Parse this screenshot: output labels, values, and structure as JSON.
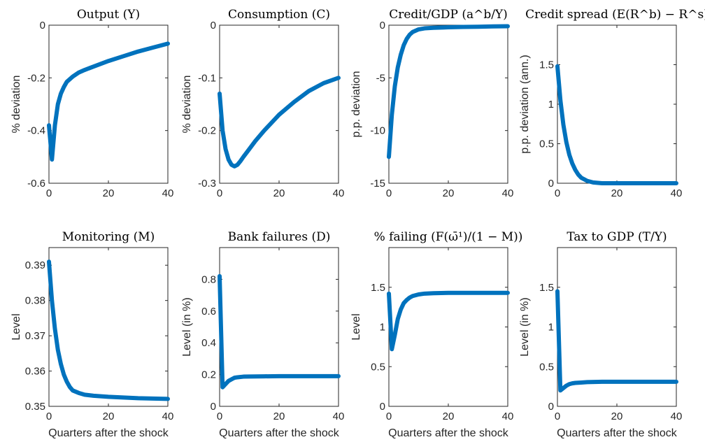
{
  "chart_data": [
    {
      "type": "line",
      "title": "Output (Y)",
      "ylabel": "% deviation",
      "xlabel": "",
      "xlim": [
        0,
        40
      ],
      "ylim": [
        -0.6,
        0
      ],
      "xticks": [
        0,
        20,
        40
      ],
      "yticks": [
        0,
        -0.2,
        -0.4,
        -0.6
      ],
      "ytick_labels": [
        "0",
        "-0.2",
        "-0.4",
        "-0.6"
      ],
      "x": [
        0,
        1,
        2,
        3,
        4,
        5,
        6,
        8,
        10,
        12,
        15,
        20,
        25,
        30,
        35,
        40
      ],
      "y": [
        -0.38,
        -0.51,
        -0.38,
        -0.3,
        -0.26,
        -0.235,
        -0.215,
        -0.195,
        -0.18,
        -0.17,
        -0.157,
        -0.136,
        -0.118,
        -0.1,
        -0.085,
        -0.07
      ],
      "color": "#0072bd"
    },
    {
      "type": "line",
      "title": "Consumption (C)",
      "ylabel": "% deviation",
      "xlabel": "",
      "xlim": [
        0,
        40
      ],
      "ylim": [
        -0.3,
        0
      ],
      "xticks": [
        0,
        20,
        40
      ],
      "yticks": [
        0,
        -0.1,
        -0.2,
        -0.3
      ],
      "ytick_labels": [
        "0",
        "-0.1",
        "-0.2",
        "-0.3"
      ],
      "x": [
        0,
        1,
        2,
        3,
        4,
        5,
        6,
        7,
        8,
        10,
        12,
        15,
        20,
        25,
        30,
        35,
        40
      ],
      "y": [
        -0.13,
        -0.2,
        -0.235,
        -0.255,
        -0.265,
        -0.268,
        -0.265,
        -0.258,
        -0.25,
        -0.235,
        -0.22,
        -0.2,
        -0.17,
        -0.146,
        -0.125,
        -0.11,
        -0.1
      ],
      "color": "#0072bd"
    },
    {
      "type": "line",
      "title": "Credit/GDP (a^b/Y)",
      "ylabel": "p.p. deviation",
      "xlabel": "",
      "xlim": [
        0,
        40
      ],
      "ylim": [
        -15,
        0
      ],
      "xticks": [
        0,
        20,
        40
      ],
      "yticks": [
        0,
        -5,
        -10,
        -15
      ],
      "ytick_labels": [
        "0",
        "-5",
        "-10",
        "-15"
      ],
      "x": [
        0,
        1,
        2,
        3,
        4,
        5,
        6,
        7,
        8,
        10,
        12,
        15,
        20,
        25,
        30,
        35,
        40
      ],
      "y": [
        -12.5,
        -8.5,
        -5.8,
        -4.0,
        -2.8,
        -1.9,
        -1.3,
        -0.9,
        -0.65,
        -0.4,
        -0.3,
        -0.25,
        -0.2,
        -0.17,
        -0.15,
        -0.12,
        -0.1
      ],
      "color": "#0072bd"
    },
    {
      "type": "line",
      "title": "Credit spread (E(R^b) − R^s)",
      "ylabel": "p.p. deviation (ann.)",
      "xlabel": "",
      "xlim": [
        0,
        40
      ],
      "ylim": [
        0,
        2
      ],
      "xticks": [
        0,
        20,
        40
      ],
      "yticks": [
        0,
        0.5,
        1,
        1.5
      ],
      "ytick_labels": [
        "0",
        "0.5",
        "1",
        "1.5"
      ],
      "x": [
        0,
        1,
        2,
        3,
        4,
        5,
        6,
        7,
        8,
        10,
        12,
        15,
        20,
        30,
        40
      ],
      "y": [
        1.48,
        1.05,
        0.74,
        0.52,
        0.36,
        0.25,
        0.17,
        0.11,
        0.07,
        0.03,
        0.01,
        0.0,
        0.0,
        0.0,
        0.0
      ],
      "color": "#0072bd"
    },
    {
      "type": "line",
      "title": "Monitoring (M)",
      "ylabel": "Level",
      "xlabel": "Quarters after the shock",
      "xlim": [
        0,
        40
      ],
      "ylim": [
        0.35,
        0.395
      ],
      "xticks": [
        0,
        20,
        40
      ],
      "yticks": [
        0.35,
        0.36,
        0.37,
        0.38,
        0.39
      ],
      "ytick_labels": [
        "0.35",
        "0.36",
        "0.37",
        "0.38",
        "0.39"
      ],
      "x": [
        0,
        1,
        2,
        3,
        4,
        5,
        6,
        7,
        8,
        10,
        12,
        15,
        20,
        25,
        30,
        40
      ],
      "y": [
        0.391,
        0.38,
        0.372,
        0.366,
        0.362,
        0.359,
        0.357,
        0.3555,
        0.3545,
        0.3538,
        0.3533,
        0.353,
        0.3527,
        0.3525,
        0.3523,
        0.3521
      ],
      "color": "#0072bd"
    },
    {
      "type": "line",
      "title": "Bank failures (D)",
      "ylabel": "Level (in %)",
      "xlabel": "Quarters after the shock",
      "xlim": [
        0,
        40
      ],
      "ylim": [
        0,
        1
      ],
      "xticks": [
        0,
        20,
        40
      ],
      "yticks": [
        0,
        0.2,
        0.4,
        0.6,
        0.8
      ],
      "ytick_labels": [
        "0",
        "0.2",
        "0.4",
        "0.6",
        "0.8"
      ],
      "x": [
        0,
        1,
        2,
        3,
        4,
        5,
        6,
        8,
        10,
        15,
        20,
        30,
        40
      ],
      "y": [
        0.82,
        0.12,
        0.14,
        0.16,
        0.17,
        0.18,
        0.183,
        0.187,
        0.188,
        0.189,
        0.19,
        0.19,
        0.19
      ],
      "color": "#0072bd"
    },
    {
      "type": "line",
      "title": "% failing (F(ω̄¹)/(1 − M))",
      "ylabel": "Level",
      "xlabel": "Quarters after the shock",
      "xlim": [
        0,
        40
      ],
      "ylim": [
        0,
        2
      ],
      "xticks": [
        0,
        20,
        40
      ],
      "yticks": [
        0,
        0.5,
        1,
        1.5
      ],
      "ytick_labels": [
        "0",
        "0.5",
        "1",
        "1.5"
      ],
      "x": [
        0,
        1,
        2,
        3,
        4,
        5,
        6,
        7,
        8,
        10,
        12,
        15,
        20,
        30,
        40
      ],
      "y": [
        1.42,
        0.72,
        0.9,
        1.1,
        1.22,
        1.3,
        1.34,
        1.37,
        1.39,
        1.41,
        1.42,
        1.425,
        1.43,
        1.43,
        1.43
      ],
      "color": "#0072bd"
    },
    {
      "type": "line",
      "title": "Tax to GDP (T/Y)",
      "ylabel": "Level (in %)",
      "xlabel": "Quarters after the shock",
      "xlim": [
        0,
        40
      ],
      "ylim": [
        0,
        2
      ],
      "xticks": [
        0,
        20,
        40
      ],
      "yticks": [
        0,
        0.5,
        1,
        1.5
      ],
      "ytick_labels": [
        "0",
        "0.5",
        "1",
        "1.5"
      ],
      "x": [
        0,
        1,
        2,
        3,
        4,
        5,
        6,
        8,
        10,
        15,
        20,
        30,
        40
      ],
      "y": [
        1.45,
        0.2,
        0.23,
        0.26,
        0.28,
        0.29,
        0.295,
        0.3,
        0.305,
        0.31,
        0.31,
        0.31,
        0.31
      ],
      "color": "#0072bd"
    }
  ]
}
